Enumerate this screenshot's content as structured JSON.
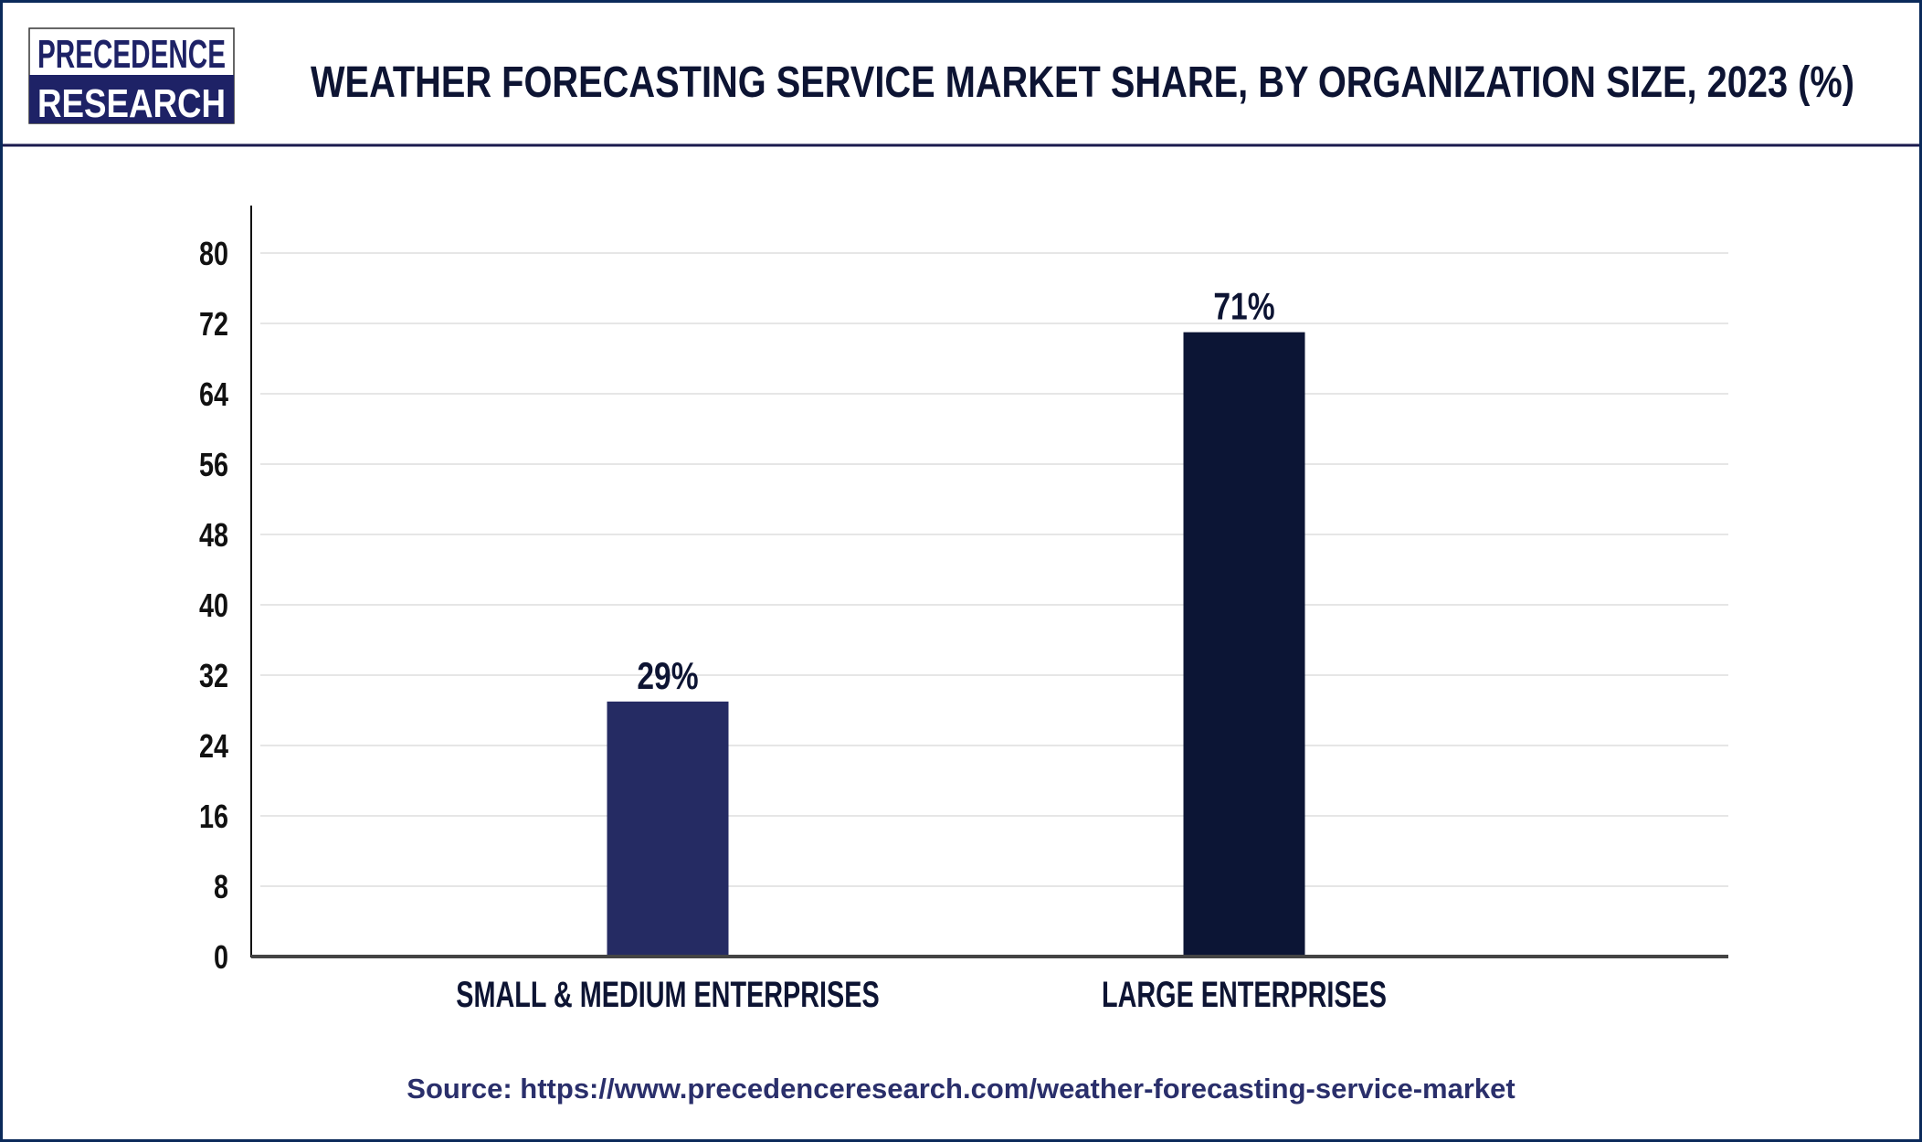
{
  "logo": {
    "line1": "PRECEDENCE",
    "line2": "RESEARCH"
  },
  "colors": {
    "border": "#0b2a5a",
    "header_rule": "#1a1a4e",
    "text": "#0d1433",
    "source": "#2a2f6b",
    "grid": "#e6e6e6",
    "axis": "#444444"
  },
  "chart_data": {
    "type": "bar",
    "title": "WEATHER FORECASTING SERVICE MARKET SHARE, BY ORGANIZATION SIZE, 2023 (%)",
    "categories": [
      "SMALL & MEDIUM ENTERPRISES",
      "LARGE ENTERPRISES"
    ],
    "values": [
      29,
      71
    ],
    "data_labels": [
      "29%",
      "71%"
    ],
    "bar_colors": [
      "#252b63",
      "#0c1535"
    ],
    "ylim": [
      0,
      80
    ],
    "yticks": [
      "0",
      "8",
      "16",
      "24",
      "32",
      "40",
      "48",
      "56",
      "64",
      "72",
      "80"
    ],
    "grid": true,
    "xlabel": "",
    "ylabel": ""
  },
  "source": "Source: https://www.precedenceresearch.com/weather-forecasting-service-market"
}
